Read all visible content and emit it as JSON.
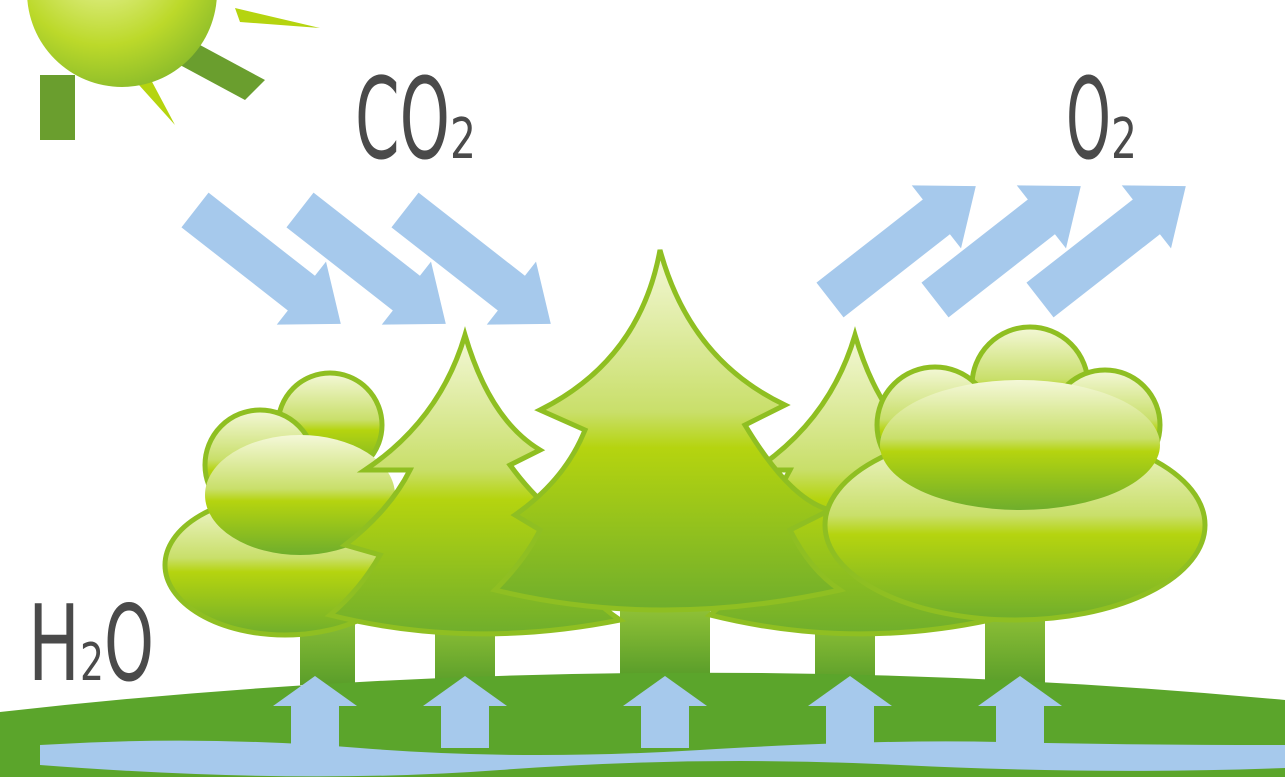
{
  "labels": [
    {
      "base": "CO",
      "subscript": "2"
    },
    {
      "base": "O",
      "subscript": "2"
    },
    {
      "base": "H",
      "subscript": "2",
      "tail": "O"
    }
  ]
}
